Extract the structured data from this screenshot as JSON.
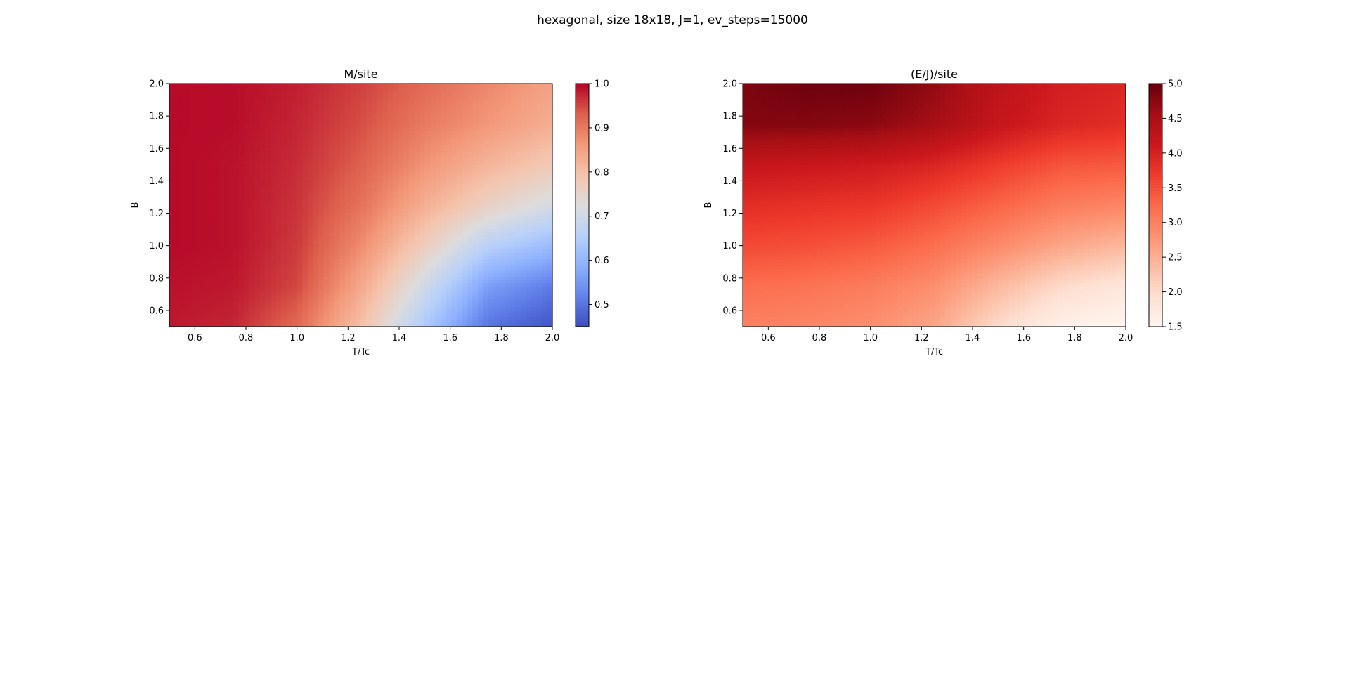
{
  "figure": {
    "suptitle": "hexagonal, size 18x18, J=1, ev_steps=15000"
  },
  "chart_data": [
    {
      "type": "heatmap",
      "title": "M/site",
      "xlabel": "T/Tc",
      "ylabel": "B",
      "xlim": [
        0.5,
        2.0
      ],
      "ylim": [
        0.5,
        2.0
      ],
      "xticks": [
        "0.6",
        "0.8",
        "1.0",
        "1.2",
        "1.4",
        "1.6",
        "1.8",
        "2.0"
      ],
      "yticks": [
        "0.6",
        "0.8",
        "1.0",
        "1.2",
        "1.4",
        "1.6",
        "1.8",
        "2.0"
      ],
      "colormap": "coolwarm",
      "colorbar": {
        "vmin": 0.45,
        "vmax": 1.0,
        "ticks": [
          "0.5",
          "0.6",
          "0.7",
          "0.8",
          "0.9",
          "1.0"
        ]
      },
      "x": [
        0.5,
        0.75,
        1.0,
        1.25,
        1.5,
        1.75,
        2.0
      ],
      "y": [
        0.5,
        0.75,
        1.0,
        1.25,
        1.5,
        1.75,
        2.0
      ],
      "z": [
        [
          0.985,
          0.975,
          0.92,
          0.8,
          0.64,
          0.5,
          0.46
        ],
        [
          0.99,
          0.985,
          0.95,
          0.84,
          0.7,
          0.56,
          0.51
        ],
        [
          0.995,
          0.99,
          0.96,
          0.88,
          0.77,
          0.66,
          0.61
        ],
        [
          0.995,
          0.99,
          0.965,
          0.91,
          0.83,
          0.76,
          0.71
        ],
        [
          0.995,
          0.99,
          0.97,
          0.93,
          0.87,
          0.82,
          0.78
        ],
        [
          0.995,
          0.993,
          0.975,
          0.945,
          0.9,
          0.865,
          0.83
        ],
        [
          0.995,
          0.993,
          0.98,
          0.955,
          0.92,
          0.885,
          0.85
        ]
      ]
    },
    {
      "type": "heatmap",
      "title": "(E/J)/site",
      "xlabel": "T/Tc",
      "ylabel": "B",
      "xlim": [
        0.5,
        2.0
      ],
      "ylim": [
        0.5,
        2.0
      ],
      "xticks": [
        "0.6",
        "0.8",
        "1.0",
        "1.2",
        "1.4",
        "1.6",
        "1.8",
        "2.0"
      ],
      "yticks": [
        "0.6",
        "0.8",
        "1.0",
        "1.2",
        "1.4",
        "1.6",
        "1.8",
        "2.0"
      ],
      "colormap": "Reds",
      "colorbar": {
        "vmin": 1.5,
        "vmax": 5.0,
        "ticks": [
          "1.5",
          "2.0",
          "2.5",
          "3.0",
          "3.5",
          "4.0",
          "4.5",
          "5.0"
        ]
      },
      "x": [
        0.5,
        0.75,
        1.0,
        1.25,
        1.5,
        1.75,
        2.0
      ],
      "y": [
        0.5,
        0.75,
        1.0,
        1.25,
        1.5,
        1.75,
        2.0
      ],
      "z": [
        [
          3.0,
          2.95,
          2.85,
          2.6,
          2.0,
          1.6,
          1.5
        ],
        [
          3.2,
          3.15,
          3.05,
          2.85,
          2.4,
          2.0,
          1.8
        ],
        [
          3.55,
          3.5,
          3.4,
          3.2,
          2.9,
          2.6,
          2.4
        ],
        [
          3.85,
          3.8,
          3.75,
          3.55,
          3.3,
          3.05,
          2.95
        ],
        [
          4.2,
          4.15,
          4.1,
          3.95,
          3.7,
          3.45,
          3.4
        ],
        [
          4.8,
          4.8,
          4.75,
          4.55,
          4.2,
          3.95,
          3.85
        ],
        [
          4.85,
          4.95,
          4.95,
          4.7,
          4.3,
          4.05,
          3.95
        ]
      ]
    }
  ]
}
